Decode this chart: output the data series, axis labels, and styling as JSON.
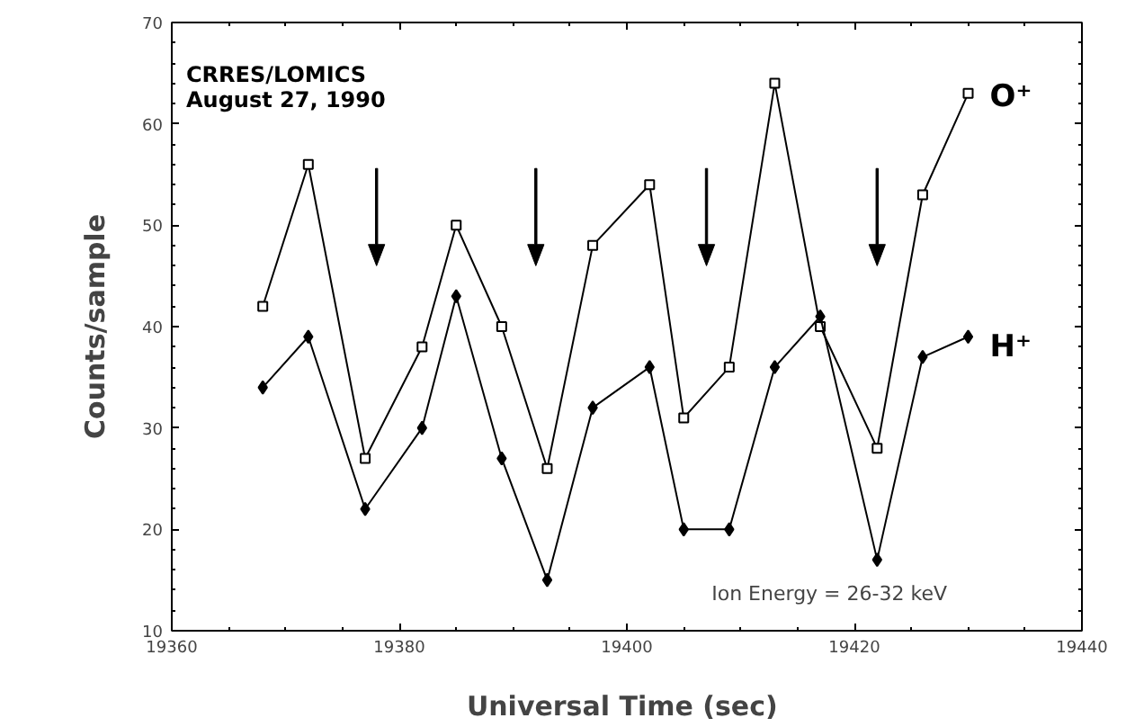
{
  "chart_data": {
    "type": "line",
    "title": "CRRES/LOMICS\nAugust 27, 1990",
    "xlabel": "Universal Time  (sec)",
    "ylabel": "Counts/sample",
    "x": [
      19368,
      19372,
      19377,
      19382,
      19385,
      19389,
      19393,
      19397,
      19402,
      19405,
      19409,
      19413,
      19417,
      19422,
      19426,
      19430
    ],
    "series": [
      {
        "name": "O⁺",
        "color": "#000000",
        "marker": "square",
        "values": [
          42,
          56,
          27,
          38,
          50,
          40,
          26,
          48,
          54,
          31,
          36,
          64,
          40,
          28,
          53,
          63
        ]
      },
      {
        "name": "H⁺",
        "color": "#000000",
        "marker": "diamond",
        "values": [
          34,
          39,
          22,
          30,
          43,
          27,
          15,
          32,
          36,
          20,
          20,
          36,
          41,
          17,
          37,
          39
        ]
      }
    ],
    "xlim": [
      19360,
      19440
    ],
    "xticks": [
      19360,
      19380,
      19400,
      19420,
      19440
    ],
    "ylim": [
      10,
      70
    ],
    "yticks": [
      10,
      20,
      30,
      40,
      50,
      60,
      70
    ],
    "grid": false,
    "legend": "right",
    "line_style": "solid",
    "ref_lines": [
      {
        "axis": "x",
        "value": 19378
      },
      {
        "axis": "x",
        "value": 19392
      },
      {
        "axis": "x",
        "value": 19407
      },
      {
        "axis": "x",
        "value": 19422
      }
    ],
    "annotations": [
      "Ion Energy = 26-32 keV"
    ]
  }
}
